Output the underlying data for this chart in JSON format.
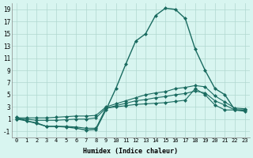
{
  "xlabel": "Humidex (Indice chaleur)",
  "bg_color": "#d8f5f0",
  "grid_color": "#b0d8d0",
  "line_color": "#1a6b60",
  "xlim": [
    -0.5,
    23.5
  ],
  "ylim": [
    -2,
    20
  ],
  "xticks": [
    0,
    1,
    2,
    3,
    4,
    5,
    6,
    7,
    8,
    9,
    10,
    11,
    12,
    13,
    14,
    15,
    16,
    17,
    18,
    19,
    20,
    21,
    22,
    23
  ],
  "yticks": [
    -1,
    1,
    3,
    5,
    7,
    9,
    11,
    13,
    15,
    17,
    19
  ],
  "series": [
    [
      1.2,
      1.2,
      1.2,
      1.2,
      1.3,
      1.4,
      1.5,
      1.5,
      1.6,
      3.0,
      3.5,
      4.0,
      4.5,
      5.0,
      5.3,
      5.5,
      6.0,
      6.2,
      6.5,
      6.3,
      4.8,
      3.8,
      2.8,
      2.7
    ],
    [
      1,
      1.0,
      0.8,
      0.8,
      0.8,
      0.9,
      1.0,
      1.0,
      1.2,
      2.8,
      3.2,
      3.6,
      4.0,
      4.2,
      4.5,
      4.7,
      5.0,
      5.2,
      5.6,
      5.3,
      4.0,
      3.3,
      2.5,
      2.5
    ],
    [
      1,
      0.7,
      0.4,
      -0.2,
      -0.2,
      -0.2,
      -0.3,
      -0.5,
      -0.5,
      2.8,
      3.0,
      3.2,
      3.4,
      3.5,
      3.6,
      3.7,
      3.9,
      4.1,
      6.0,
      5.0,
      3.3,
      2.5,
      2.5,
      2.5
    ],
    [
      1.3,
      0.7,
      0.3,
      -0.2,
      -0.2,
      -0.3,
      -0.5,
      -0.8,
      -0.7,
      2.5,
      6.0,
      10.0,
      13.8,
      15.0,
      18.0,
      19.2,
      19.0,
      17.5,
      12.5,
      9.0,
      6.0,
      5.0,
      2.5,
      2.3
    ]
  ]
}
